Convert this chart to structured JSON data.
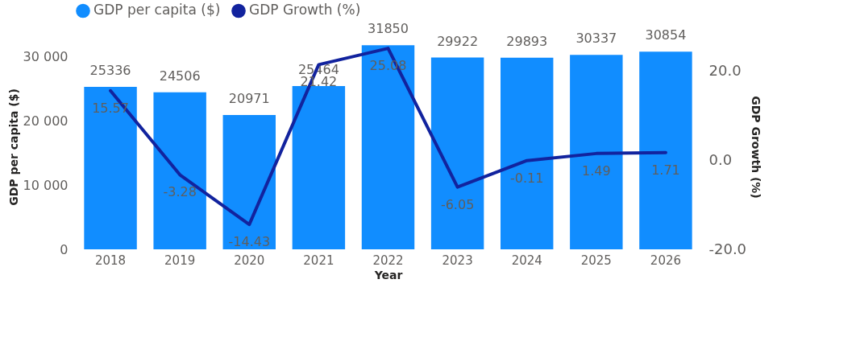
{
  "chart_data": {
    "type": "bar",
    "xlabel": "Year",
    "ylabel": "GDP per capita ($)",
    "y2label": "GDP Growth (%)",
    "categories": [
      "2018",
      "2019",
      "2020",
      "2021",
      "2022",
      "2023",
      "2024",
      "2025",
      "2026"
    ],
    "series": [
      {
        "name": "GDP per capita ($)",
        "color": "#118dff",
        "values": [
          25336,
          24506,
          20971,
          25464,
          31850,
          29922,
          29893,
          30337,
          30854
        ]
      },
      {
        "name": "GDP Growth (%)",
        "type": "line",
        "axis": "y2",
        "color": "#12239e",
        "values": [
          15.57,
          -3.28,
          -14.43,
          21.42,
          25.08,
          -6.05,
          -0.11,
          1.49,
          1.71
        ]
      }
    ],
    "ylim": [
      0,
      32000
    ],
    "yticks": [
      0,
      {
        "value": 10000,
        "label": "10 000"
      },
      {
        "value": 20000,
        "label": "20 000"
      },
      {
        "value": 30000,
        "label": "30 000"
      }
    ],
    "y2lim": [
      -20,
      26
    ],
    "y2ticks": [
      {
        "value": -20,
        "label": "-20.0"
      },
      {
        "value": 0,
        "label": "0.0"
      },
      {
        "value": 20,
        "label": "20.0"
      }
    ],
    "data_labels": true,
    "legend": "top left"
  }
}
